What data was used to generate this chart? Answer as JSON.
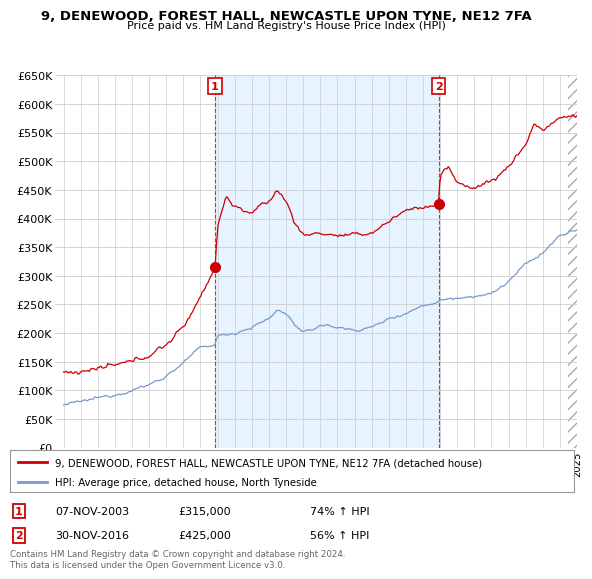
{
  "title": "9, DENEWOOD, FOREST HALL, NEWCASTLE UPON TYNE, NE12 7FA",
  "subtitle": "Price paid vs. HM Land Registry's House Price Index (HPI)",
  "legend_line1": "9, DENEWOOD, FOREST HALL, NEWCASTLE UPON TYNE, NE12 7FA (detached house)",
  "legend_line2": "HPI: Average price, detached house, North Tyneside",
  "footnote": "Contains HM Land Registry data © Crown copyright and database right 2024.\nThis data is licensed under the Open Government Licence v3.0.",
  "annotation1": {
    "label": "1",
    "date": "07-NOV-2003",
    "price": "£315,000",
    "change": "74% ↑ HPI"
  },
  "annotation2": {
    "label": "2",
    "date": "30-NOV-2016",
    "price": "£425,000",
    "change": "56% ↑ HPI"
  },
  "ylim": [
    0,
    650000
  ],
  "yticks": [
    0,
    50000,
    100000,
    150000,
    200000,
    250000,
    300000,
    350000,
    400000,
    450000,
    500000,
    550000,
    600000,
    650000
  ],
  "background_color": "#ffffff",
  "grid_color": "#cccccc",
  "red_color": "#cc0000",
  "blue_color": "#7799cc",
  "sale1_x": 2003.85,
  "sale1_y": 315000,
  "sale2_x": 2016.92,
  "sale2_y": 425000,
  "xmin": 1995,
  "xmax": 2025
}
